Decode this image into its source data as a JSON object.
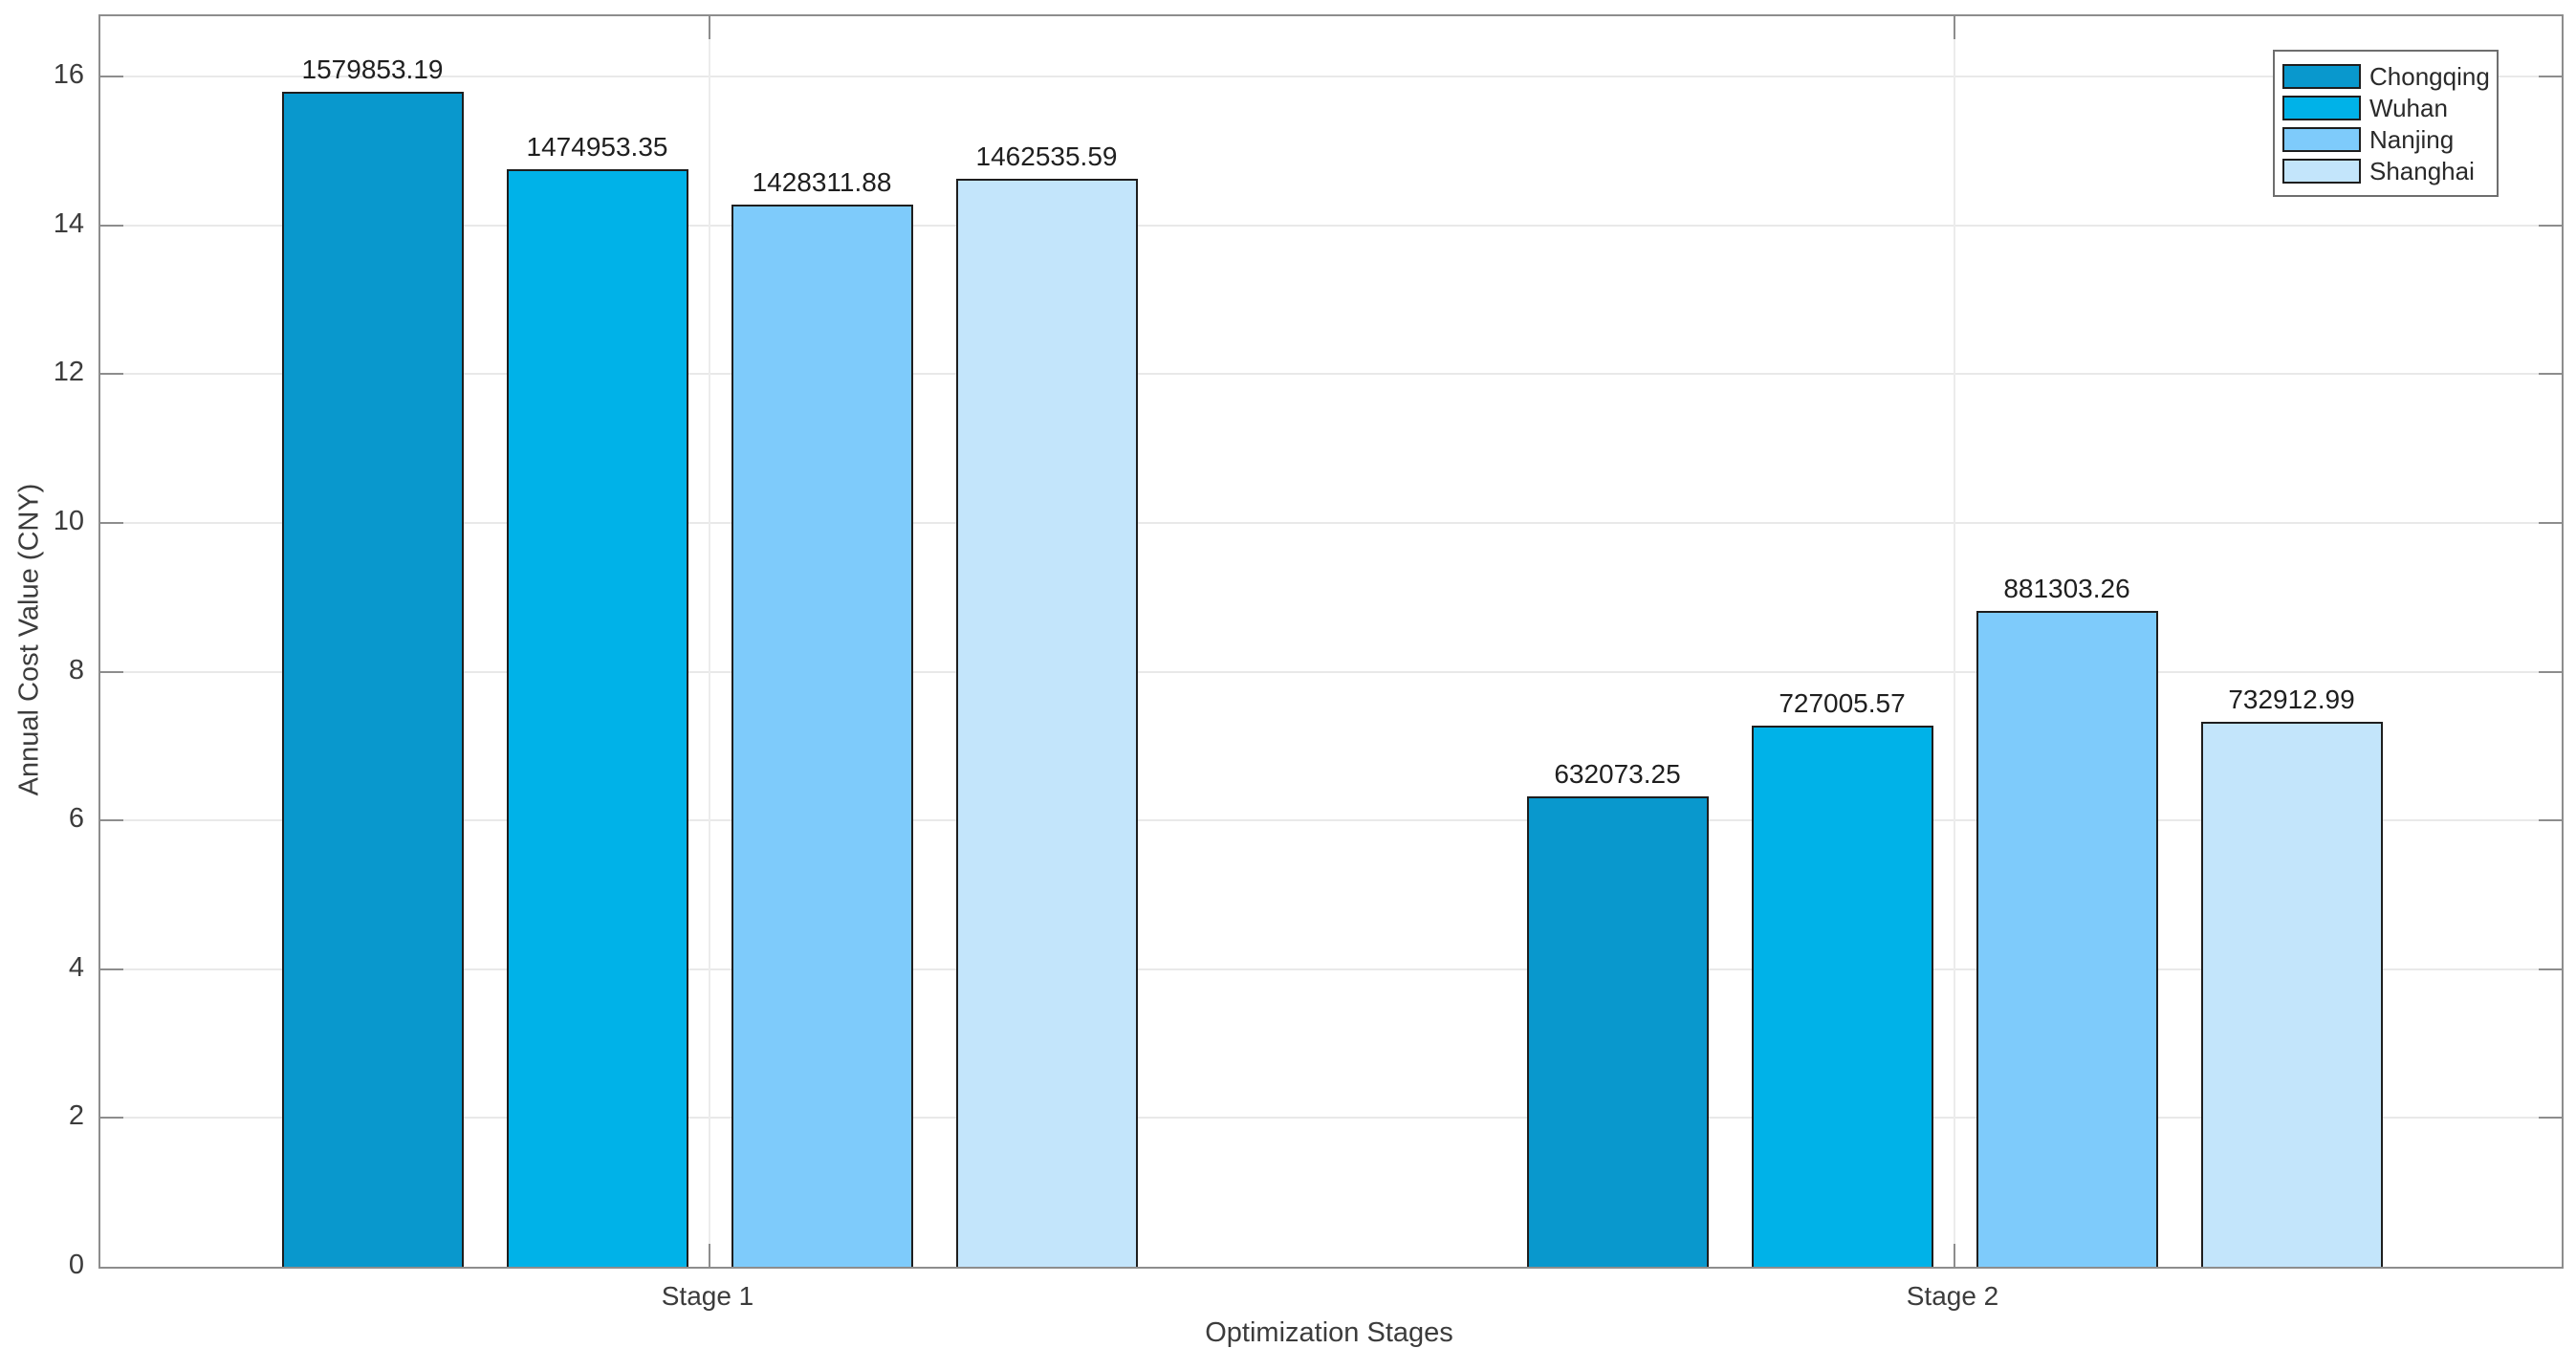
{
  "chart_data": {
    "type": "bar",
    "title": "",
    "xlabel": "Optimization Stages",
    "ylabel": "Annual Cost Value (CNY)",
    "categories": [
      "Stage 1",
      "Stage 2"
    ],
    "series": [
      {
        "name": "Chongqing",
        "color": "#0998CD",
        "values": [
          1579853.19,
          632073.25
        ]
      },
      {
        "name": "Wuhan",
        "color": "#00B2E8",
        "values": [
          1474953.35,
          727005.57
        ]
      },
      {
        "name": "Nanjing",
        "color": "#7ECBFB",
        "values": [
          1428311.88,
          881303.26
        ]
      },
      {
        "name": "Shanghai",
        "color": "#C3E5FB",
        "values": [
          1462535.59,
          732912.99
        ]
      }
    ],
    "bar_value_labels": [
      [
        "1579853.19",
        "632073.25"
      ],
      [
        "1474953.35",
        "727005.57"
      ],
      [
        "1428311.88",
        "881303.26"
      ],
      [
        "1462535.59",
        "732912.99"
      ]
    ],
    "axis_unit_divisor": 100000,
    "yticks": [
      0,
      2,
      4,
      6,
      8,
      10,
      12,
      14,
      16
    ],
    "ylim": [
      0,
      16.8
    ],
    "grid": true,
    "legend_position": "top-right",
    "colors": {
      "bar_edge": "#1E1E1E",
      "axis_frame": "#8D8D8D",
      "gridline": "#E9E9E9",
      "tick_text": "#3C3C3C",
      "value_label_text": "#1F1F1F",
      "background": "#FFFFFF"
    }
  }
}
